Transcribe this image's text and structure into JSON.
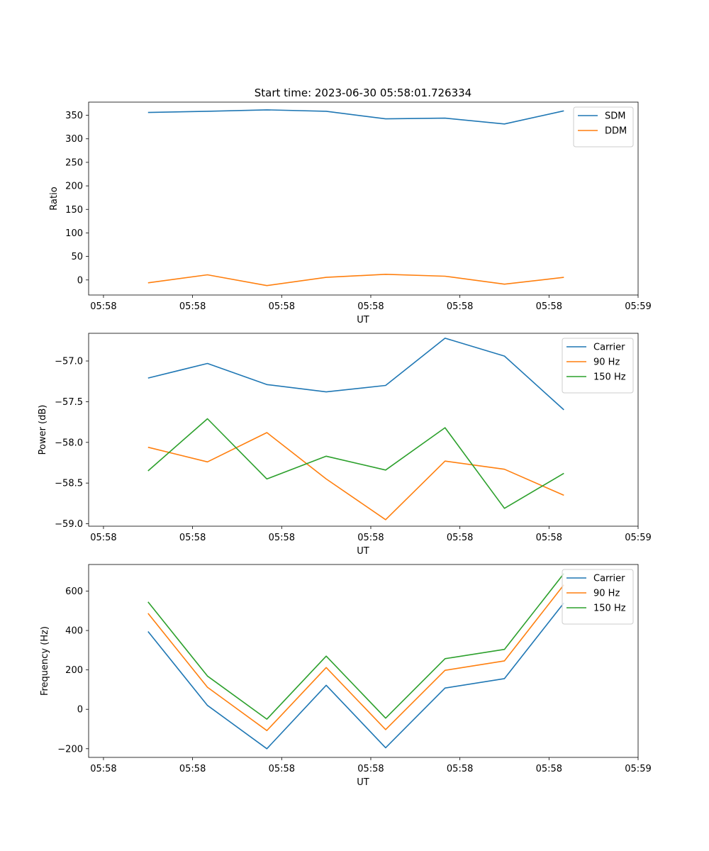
{
  "figure": {
    "title": "Start time: 2023-06-30 05:58:01.726334",
    "colors": {
      "blue": "#1f77b4",
      "orange": "#ff7f0e",
      "green": "#2ca02c"
    }
  },
  "chart_data": [
    {
      "type": "line",
      "ylabel": "Ratio",
      "xlabel": "UT",
      "x": [
        1,
        2,
        3,
        4,
        5,
        6,
        7,
        8
      ],
      "xticks": [
        0.25,
        1.75,
        3.25,
        4.75,
        6.25,
        7.75,
        9.25
      ],
      "xtick_labels": [
        "05:58",
        "05:58",
        "05:58",
        "05:58",
        "05:58",
        "05:58",
        "05:59"
      ],
      "xlim": [
        0.0,
        9.25
      ],
      "ylim": [
        -32,
        378
      ],
      "yticks": [
        0,
        50,
        100,
        150,
        200,
        250,
        300,
        350
      ],
      "ytick_labels": [
        "0",
        "50",
        "100",
        "150",
        "200",
        "250",
        "300",
        "350"
      ],
      "legend": "top-right",
      "series": [
        {
          "name": "SDM",
          "color": "#1f77b4",
          "values": [
            356,
            358.5,
            361.5,
            358.5,
            342.5,
            344,
            331.5,
            359.5
          ]
        },
        {
          "name": "DDM",
          "color": "#ff7f0e",
          "values": [
            -6,
            11,
            -12,
            5.5,
            12,
            8,
            -9,
            5.5
          ]
        }
      ]
    },
    {
      "type": "line",
      "ylabel": "Power (dB)",
      "xlabel": "UT",
      "x": [
        1,
        2,
        3,
        4,
        5,
        6,
        7,
        8
      ],
      "xticks": [
        0.25,
        1.75,
        3.25,
        4.75,
        6.25,
        7.75,
        9.25
      ],
      "xtick_labels": [
        "05:58",
        "05:58",
        "05:58",
        "05:58",
        "05:58",
        "05:58",
        "05:59"
      ],
      "xlim": [
        0.0,
        9.25
      ],
      "ylim": [
        -59.03,
        -56.66
      ],
      "yticks": [
        -59.0,
        -58.5,
        -58.0,
        -57.5,
        -57.0
      ],
      "ytick_labels": [
        "−59.0",
        "−58.5",
        "−58.0",
        "−57.5",
        "−57.0"
      ],
      "legend": "top-right",
      "series": [
        {
          "name": "Carrier",
          "color": "#1f77b4",
          "values": [
            -57.21,
            -57.03,
            -57.29,
            -57.38,
            -57.3,
            -56.72,
            -56.94,
            -57.6
          ]
        },
        {
          "name": "90 Hz",
          "color": "#ff7f0e",
          "values": [
            -58.06,
            -58.24,
            -57.88,
            -58.45,
            -58.95,
            -58.23,
            -58.33,
            -58.65
          ]
        },
        {
          "name": "150 Hz",
          "color": "#2ca02c",
          "values": [
            -58.35,
            -57.71,
            -58.45,
            -58.17,
            -58.34,
            -57.82,
            -58.81,
            -58.38
          ]
        }
      ]
    },
    {
      "type": "line",
      "ylabel": "Frequency (Hz)",
      "xlabel": "UT",
      "x": [
        1,
        2,
        3,
        4,
        5,
        6,
        7,
        8
      ],
      "xticks": [
        0.25,
        1.75,
        3.25,
        4.75,
        6.25,
        7.75,
        9.25
      ],
      "xtick_labels": [
        "05:58",
        "05:58",
        "05:58",
        "05:58",
        "05:58",
        "05:58",
        "05:59"
      ],
      "xlim": [
        0.0,
        9.25
      ],
      "ylim": [
        -244,
        735
      ],
      "yticks": [
        -200,
        0,
        200,
        400,
        600
      ],
      "ytick_labels": [
        "−200",
        "0",
        "200",
        "400",
        "600"
      ],
      "legend": "top-right",
      "series": [
        {
          "name": "Carrier",
          "color": "#1f77b4",
          "values": [
            395,
            20,
            -200,
            122,
            -195,
            108,
            156,
            540
          ]
        },
        {
          "name": "90 Hz",
          "color": "#ff7f0e",
          "values": [
            487,
            112,
            -108,
            212,
            -103,
            198,
            246,
            632
          ]
        },
        {
          "name": "150 Hz",
          "color": "#2ca02c",
          "values": [
            545,
            169,
            -50,
            270,
            -45,
            257,
            304,
            689
          ]
        }
      ]
    }
  ]
}
